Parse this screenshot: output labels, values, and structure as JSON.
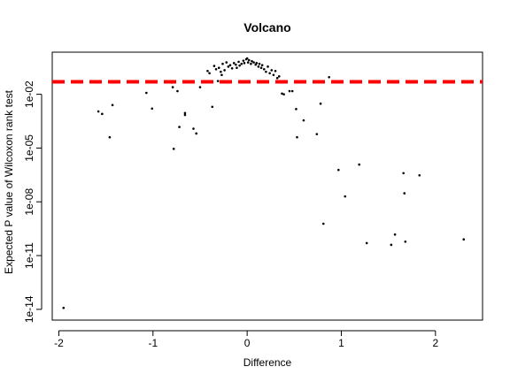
{
  "chart_data": {
    "type": "scatter",
    "title": "Volcano",
    "xlabel": "Difference",
    "ylabel": "Expected P value of Wilcoxon rank test",
    "xlim": [
      -2.07,
      2.5
    ],
    "ylim_log10": [
      -14.6,
      0.35
    ],
    "y_scale": "log",
    "xticks": [
      -2,
      -1,
      0,
      1,
      2
    ],
    "xtick_labels": [
      "-2",
      "-1",
      "0",
      "1",
      "2"
    ],
    "yticks": [
      0.01,
      1e-05,
      1e-08,
      1e-11,
      1e-14
    ],
    "ytick_labels": [
      "1e-02",
      "1e-05",
      "1e-08",
      "1e-11",
      "1e-14"
    ],
    "threshold": {
      "y": 0.05,
      "color": "#ff0000",
      "style": "dashed"
    },
    "point_color": "#000000",
    "points": [
      [
        -1.95,
        1.2e-14
      ],
      [
        -1.58,
        0.0011
      ],
      [
        -1.54,
        0.0008
      ],
      [
        -1.46,
        4e-05
      ],
      [
        -1.43,
        0.0025
      ],
      [
        -1.07,
        0.012
      ],
      [
        -1.01,
        0.0016
      ],
      [
        -0.8,
        0.045
      ],
      [
        -0.79,
        0.025
      ],
      [
        -0.78,
        9e-06
      ],
      [
        -0.74,
        0.015
      ],
      [
        -0.72,
        0.00015
      ],
      [
        -0.66,
        0.0009
      ],
      [
        -0.66,
        0.0007
      ],
      [
        -0.57,
        0.00012
      ],
      [
        -0.54,
        6.5e-05
      ],
      [
        -0.5,
        0.025
      ],
      [
        -0.42,
        0.2
      ],
      [
        -0.4,
        0.15
      ],
      [
        -0.37,
        0.002
      ],
      [
        -0.35,
        0.38
      ],
      [
        -0.33,
        0.25
      ],
      [
        -0.31,
        0.055
      ],
      [
        -0.3,
        0.3
      ],
      [
        -0.28,
        0.18
      ],
      [
        -0.27,
        0.12
      ],
      [
        -0.26,
        0.5
      ],
      [
        -0.24,
        0.22
      ],
      [
        -0.22,
        0.6
      ],
      [
        -0.2,
        0.35
      ],
      [
        -0.18,
        0.42
      ],
      [
        -0.16,
        0.28
      ],
      [
        -0.14,
        0.55
      ],
      [
        -0.12,
        0.45
      ],
      [
        -0.11,
        0.3
      ],
      [
        -0.09,
        0.65
      ],
      [
        -0.08,
        0.4
      ],
      [
        -0.06,
        0.5
      ],
      [
        -0.04,
        0.75
      ],
      [
        -0.03,
        0.55
      ],
      [
        -0.01,
        0.9
      ],
      [
        0.0,
        1.0
      ],
      [
        0.01,
        0.6
      ],
      [
        0.02,
        0.8
      ],
      [
        0.04,
        0.5
      ],
      [
        0.05,
        0.7
      ],
      [
        0.07,
        0.6
      ],
      [
        0.09,
        0.45
      ],
      [
        0.1,
        0.55
      ],
      [
        0.12,
        0.35
      ],
      [
        0.13,
        0.5
      ],
      [
        0.15,
        0.3
      ],
      [
        0.16,
        0.42
      ],
      [
        0.18,
        0.25
      ],
      [
        0.2,
        0.18
      ],
      [
        0.22,
        0.35
      ],
      [
        0.24,
        0.15
      ],
      [
        0.26,
        0.22
      ],
      [
        0.28,
        0.12
      ],
      [
        0.3,
        0.2
      ],
      [
        0.32,
        0.08
      ],
      [
        0.34,
        0.1
      ],
      [
        0.37,
        0.011
      ],
      [
        0.39,
        0.01
      ],
      [
        0.45,
        0.015
      ],
      [
        0.48,
        0.015
      ],
      [
        0.52,
        0.0015
      ],
      [
        0.53,
        4e-05
      ],
      [
        0.6,
        0.00035
      ],
      [
        0.74,
        6e-05
      ],
      [
        0.78,
        0.003
      ],
      [
        0.81,
        6e-10
      ],
      [
        0.87,
        0.09
      ],
      [
        0.97,
        6e-07
      ],
      [
        1.04,
        2e-08
      ],
      [
        1.19,
        1.2e-06
      ],
      [
        1.27,
        5e-11
      ],
      [
        1.53,
        4e-11
      ],
      [
        1.57,
        1.5e-10
      ],
      [
        1.66,
        4e-07
      ],
      [
        1.67,
        3e-08
      ],
      [
        1.68,
        6e-11
      ],
      [
        1.83,
        3e-07
      ],
      [
        2.3,
        8e-11
      ]
    ]
  }
}
